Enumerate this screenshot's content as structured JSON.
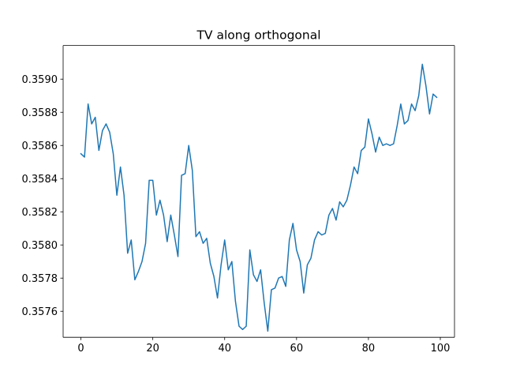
{
  "chart_data": {
    "type": "line",
    "title": "TV along orthogonal",
    "xlabel": "",
    "ylabel": "",
    "xlim": [
      -4.95,
      103.95
    ],
    "ylim": [
      0.357443,
      0.359203
    ],
    "x_ticks": [
      0,
      20,
      40,
      60,
      80,
      100
    ],
    "y_ticks": [
      0.3576,
      0.3578,
      0.358,
      0.3582,
      0.3584,
      0.3586,
      0.3588,
      0.359
    ],
    "x_tick_labels": [
      "0",
      "20",
      "40",
      "60",
      "80",
      "100"
    ],
    "y_tick_labels": [
      "0.3576",
      "0.3578",
      "0.3580",
      "0.3582",
      "0.3584",
      "0.3586",
      "0.3588",
      "0.3590"
    ],
    "grid": false,
    "legend": false,
    "series": [
      {
        "color": "#1f77b4",
        "x": [
          0,
          1,
          2,
          3,
          4,
          5,
          6,
          7,
          8,
          9,
          10,
          11,
          12,
          13,
          14,
          15,
          16,
          17,
          18,
          19,
          20,
          21,
          22,
          23,
          24,
          25,
          26,
          27,
          28,
          29,
          30,
          31,
          32,
          33,
          34,
          35,
          36,
          37,
          38,
          39,
          40,
          41,
          42,
          43,
          44,
          45,
          46,
          47,
          48,
          49,
          50,
          51,
          52,
          53,
          54,
          55,
          56,
          57,
          58,
          59,
          60,
          61,
          62,
          63,
          64,
          65,
          66,
          67,
          68,
          69,
          70,
          71,
          72,
          73,
          74,
          75,
          76,
          77,
          78,
          79,
          80,
          81,
          82,
          83,
          84,
          85,
          86,
          87,
          88,
          89,
          90,
          91,
          92,
          93,
          94,
          95,
          96,
          97,
          98,
          99
        ],
        "values": [
          0.35855,
          0.35853,
          0.35885,
          0.35873,
          0.35877,
          0.35857,
          0.35869,
          0.35873,
          0.35868,
          0.35855,
          0.3583,
          0.35847,
          0.3583,
          0.35795,
          0.35803,
          0.35779,
          0.35784,
          0.3579,
          0.35801,
          0.35839,
          0.35839,
          0.35818,
          0.35827,
          0.35818,
          0.35802,
          0.35818,
          0.35806,
          0.35793,
          0.35842,
          0.35843,
          0.3586,
          0.35845,
          0.35805,
          0.35808,
          0.35801,
          0.35804,
          0.35789,
          0.35781,
          0.35768,
          0.35788,
          0.35803,
          0.35785,
          0.3579,
          0.35766,
          0.35751,
          0.35749,
          0.35751,
          0.35797,
          0.35782,
          0.35778,
          0.35785,
          0.35765,
          0.35748,
          0.35773,
          0.35774,
          0.3578,
          0.35781,
          0.35775,
          0.35803,
          0.35813,
          0.35797,
          0.3579,
          0.35771,
          0.35788,
          0.35792,
          0.35803,
          0.35808,
          0.35806,
          0.35807,
          0.35818,
          0.35822,
          0.35815,
          0.35826,
          0.35823,
          0.35827,
          0.35836,
          0.35847,
          0.35843,
          0.35857,
          0.35859,
          0.35876,
          0.35867,
          0.35856,
          0.35865,
          0.3586,
          0.35861,
          0.3586,
          0.35861,
          0.35872,
          0.35885,
          0.35873,
          0.35875,
          0.35885,
          0.35881,
          0.3589,
          0.35909,
          0.35896,
          0.35879,
          0.35891,
          0.35889
        ]
      }
    ]
  }
}
